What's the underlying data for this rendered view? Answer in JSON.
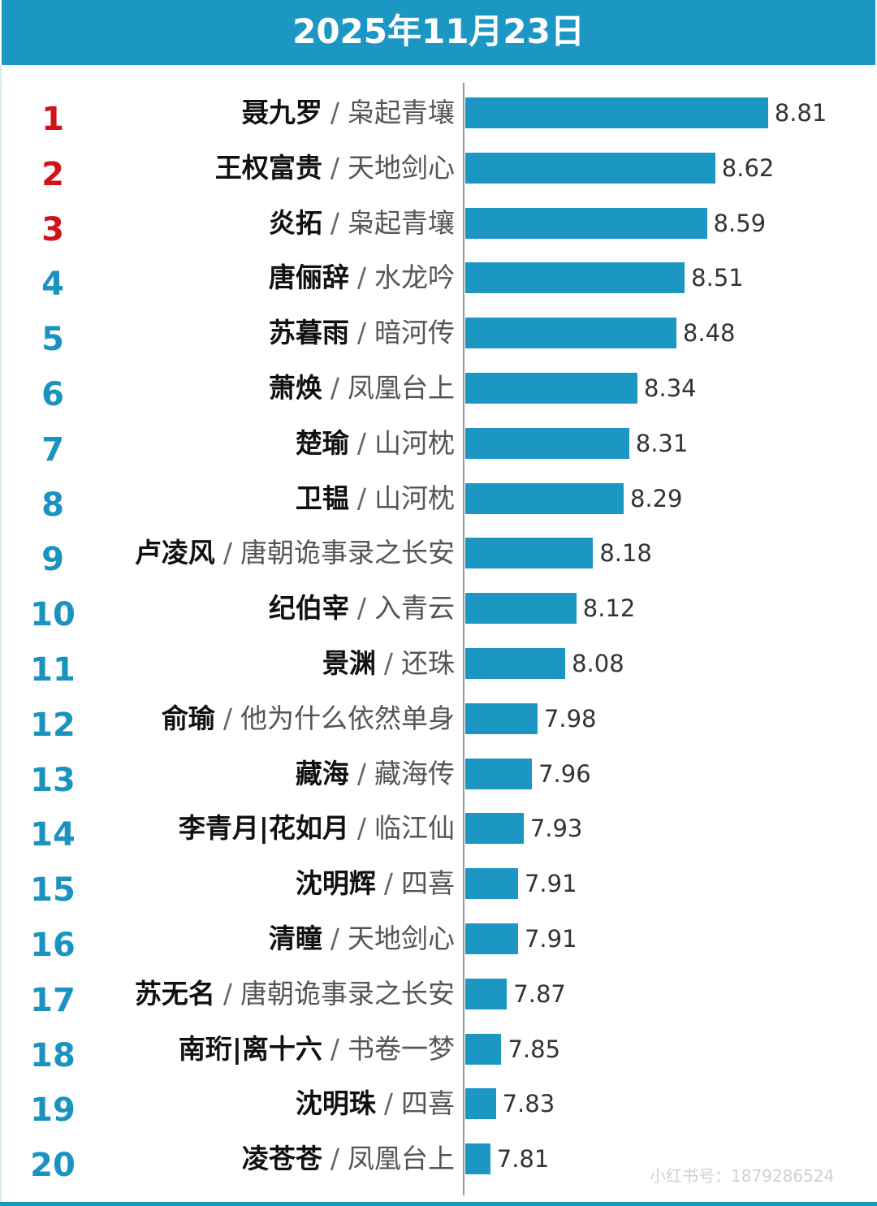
{
  "chart_data": {
    "type": "bar",
    "orientation": "horizontal",
    "title": "2025年11月23日",
    "bar_color": "#1c97c4",
    "rank_colors": {
      "top3": "#d0121b",
      "others": "#1a93c0"
    },
    "grid": false,
    "rows": [
      {
        "rank": "1",
        "name": "聂九罗",
        "drama": "枭起青壤",
        "value": 8.81
      },
      {
        "rank": "2",
        "name": "王权富贵",
        "drama": "天地剑心",
        "value": 8.62
      },
      {
        "rank": "3",
        "name": "炎拓",
        "drama": "枭起青壤",
        "value": 8.59
      },
      {
        "rank": "4",
        "name": "唐俪辞",
        "drama": "水龙吟",
        "value": 8.51
      },
      {
        "rank": "5",
        "name": "苏暮雨",
        "drama": "暗河传",
        "value": 8.48
      },
      {
        "rank": "6",
        "name": "萧焕",
        "drama": "凤凰台上",
        "value": 8.34
      },
      {
        "rank": "7",
        "name": "楚瑜",
        "drama": "山河枕",
        "value": 8.31
      },
      {
        "rank": "8",
        "name": "卫韫",
        "drama": "山河枕",
        "value": 8.29
      },
      {
        "rank": "9",
        "name": "卢凌风",
        "drama": "唐朝诡事录之长安",
        "value": 8.18
      },
      {
        "rank": "10",
        "name": "纪伯宰",
        "drama": "入青云",
        "value": 8.12
      },
      {
        "rank": "11",
        "name": "景渊",
        "drama": "还珠",
        "value": 8.08
      },
      {
        "rank": "12",
        "name": "俞瑜",
        "drama": "他为什么依然单身",
        "value": 7.98
      },
      {
        "rank": "13",
        "name": "藏海",
        "drama": "藏海传",
        "value": 7.96
      },
      {
        "rank": "14",
        "name": "李青月|花如月",
        "drama": "临江仙",
        "value": 7.93
      },
      {
        "rank": "15",
        "name": "沈明辉",
        "drama": "四喜",
        "value": 7.91
      },
      {
        "rank": "16",
        "name": "清瞳",
        "drama": "天地剑心",
        "value": 7.91
      },
      {
        "rank": "17",
        "name": "苏无名",
        "drama": "唐朝诡事录之长安",
        "value": 7.87
      },
      {
        "rank": "18",
        "name": "南珩|离十六",
        "drama": "书卷一梦",
        "value": 7.85
      },
      {
        "rank": "19",
        "name": "沈明珠",
        "drama": "四喜",
        "value": 7.83
      },
      {
        "rank": "20",
        "name": "凌苍苍",
        "drama": "凤凰台上",
        "value": 7.81
      }
    ],
    "separator": "/",
    "xlim": [
      7.72,
      9.2
    ]
  },
  "watermark": "小红书号：1879286524"
}
